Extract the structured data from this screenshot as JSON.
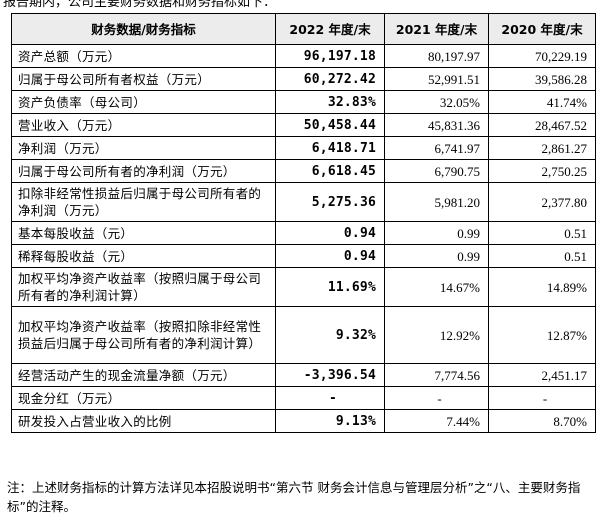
{
  "partial_top_text": "报告期内，公司主要财务数据和财务指标如下：",
  "table": {
    "headers": [
      "财务数据/财务指标",
      "2022 年度/末",
      "2021 年度/末",
      "2020 年度/末"
    ],
    "rows": [
      {
        "label": "资产总额（万元）",
        "v2022": "96,197.18",
        "v2021": "80,197.97",
        "v2020": "70,229.19"
      },
      {
        "label": "归属于母公司所有者权益（万元）",
        "v2022": "60,272.42",
        "v2021": "52,991.51",
        "v2020": "39,586.28"
      },
      {
        "label": "资产负债率（母公司）",
        "v2022": "32.83%",
        "v2021": "32.05%",
        "v2020": "41.74%"
      },
      {
        "label": "营业收入（万元）",
        "v2022": "50,458.44",
        "v2021": "45,831.36",
        "v2020": "28,467.52"
      },
      {
        "label": "净利润（万元）",
        "v2022": "6,418.71",
        "v2021": "6,741.97",
        "v2020": "2,861.27"
      },
      {
        "label": "归属于母公司所有者的净利润（万元）",
        "v2022": "6,618.45",
        "v2021": "6,790.75",
        "v2020": "2,750.25"
      },
      {
        "label": "扣除非经常性损益后归属于母公司所有者的净利润（万元）",
        "v2022": "5,275.36",
        "v2021": "5,981.20",
        "v2020": "2,377.80"
      },
      {
        "label": "基本每股收益（元）",
        "v2022": "0.94",
        "v2021": "0.99",
        "v2020": "0.51"
      },
      {
        "label": "稀释每股收益（元）",
        "v2022": "0.94",
        "v2021": "0.99",
        "v2020": "0.51"
      },
      {
        "label": "加权平均净资产收益率（按照归属于母公司所有者的净利润计算）",
        "v2022": "11.69%",
        "v2021": "14.67%",
        "v2020": "14.89%"
      },
      {
        "label": "加权平均净资产收益率（按照扣除非经常性损益后归属于母公司所有者的净利润计算）",
        "v2022": "9.32%",
        "v2021": "12.92%",
        "v2020": "12.87%"
      },
      {
        "label": "经营活动产生的现金流量净额（万元）",
        "v2022": "-3,396.54",
        "v2021": "7,774.56",
        "v2020": "2,451.17"
      },
      {
        "label": "现金分红（万元）",
        "v2022": "-",
        "v2021": "-",
        "v2020": "-"
      },
      {
        "label": "研发投入占营业收入的比例",
        "v2022": "9.13%",
        "v2021": "7.44%",
        "v2020": "8.70%"
      }
    ]
  },
  "note": "注：上述财务指标的计算方法详见本招股说明书“第六节 财务会计信息与管理层分析”之“八、主要财务指标”的注释。"
}
